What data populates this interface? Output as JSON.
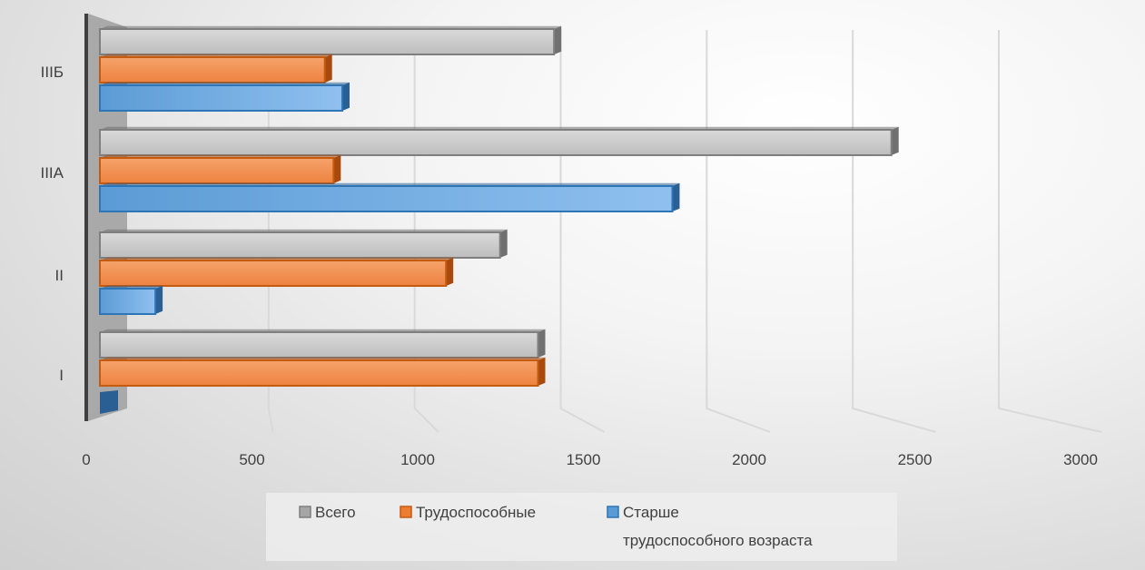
{
  "chart_data": {
    "type": "bar",
    "orientation": "horizontal",
    "categories": [
      "I",
      "II",
      "IIIА",
      "IIIБ"
    ],
    "series": [
      {
        "name": "Всего",
        "values": [
          1500,
          1370,
          2710,
          1555
        ],
        "color": "#a6a6a6"
      },
      {
        "name": "Трудоспособные",
        "values": [
          1500,
          1185,
          800,
          770
        ],
        "color": "#ed7d31"
      },
      {
        "name": "Старше трудоспособного возраста",
        "values": [
          0,
          190,
          1960,
          830
        ],
        "color": "#5b9bd5"
      }
    ],
    "xticks": [
      "0",
      "500",
      "1000",
      "1500",
      "2000",
      "2500",
      "3000"
    ],
    "xlim": [
      0,
      3000
    ],
    "title": "",
    "xlabel": "",
    "ylabel": "",
    "grid": true,
    "legend_position": "bottom"
  },
  "legend": {
    "items": [
      {
        "line1": "Всего",
        "line2": ""
      },
      {
        "line1": "Трудоспособные",
        "line2": ""
      },
      {
        "line1": "Старше",
        "line2": "трудоспособного возраста"
      }
    ]
  }
}
